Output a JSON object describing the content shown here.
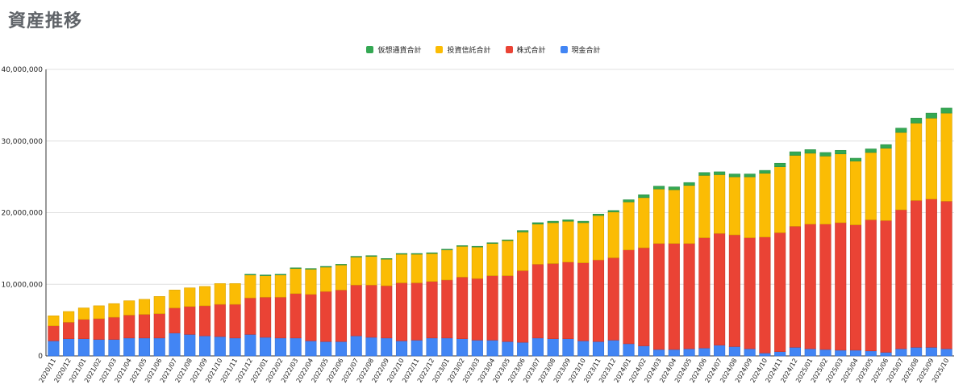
{
  "chart_data": {
    "type": "bar",
    "stacked": true,
    "title": "資産推移",
    "xlabel": "",
    "ylabel": "",
    "ylim": [
      0,
      40000000
    ],
    "yticks": [
      "0",
      "10,000,000",
      "20,000,000",
      "30,000,000",
      "40,000,000"
    ],
    "ytick_values": [
      0,
      10000000,
      20000000,
      30000000,
      40000000
    ],
    "legend_position": "top-center",
    "categories": [
      "2020/11",
      "2020/12",
      "2021/01",
      "2021/02",
      "2021/03",
      "2021/04",
      "2021/05",
      "2021/06",
      "2021/07",
      "2021/08",
      "2021/09",
      "2021/10",
      "2021/11",
      "2021/12",
      "2022/01",
      "2022/02",
      "2022/03",
      "2022/04",
      "2022/05",
      "2022/06",
      "2022/07",
      "2022/08",
      "2022/09",
      "2022/10",
      "2022/11",
      "2022/12",
      "2023/01",
      "2023/02",
      "2023/03",
      "2023/04",
      "2023/05",
      "2023/06",
      "2023/07",
      "2023/08",
      "2023/09",
      "2023/10",
      "2023/11",
      "2023/12",
      "2024/01",
      "2024/02",
      "2024/03",
      "2024/04",
      "2024/05",
      "2024/06",
      "2024/07",
      "2024/08",
      "2024/09",
      "2024/10",
      "2024/11",
      "2024/12",
      "2025/01",
      "2025/02",
      "2025/03",
      "2025/04",
      "2025/05",
      "2025/06",
      "2025/07",
      "2025/08",
      "2025/09",
      "2025/10"
    ],
    "series": [
      {
        "name": "現金合計",
        "color": "#4285f4",
        "values": [
          2100000,
          2400000,
          2400000,
          2300000,
          2300000,
          2500000,
          2500000,
          2500000,
          3200000,
          3000000,
          2800000,
          2700000,
          2500000,
          3000000,
          2600000,
          2500000,
          2500000,
          2100000,
          2000000,
          2000000,
          2800000,
          2600000,
          2500000,
          2100000,
          2200000,
          2500000,
          2500000,
          2400000,
          2200000,
          2200000,
          2000000,
          1900000,
          2500000,
          2400000,
          2400000,
          2100000,
          2000000,
          2200000,
          1700000,
          1400000,
          900000,
          900000,
          1000000,
          1100000,
          1500000,
          1300000,
          1000000,
          400000,
          600000,
          1200000,
          1000000,
          900000,
          800000,
          800000,
          700000,
          500000,
          1000000,
          1200000,
          1200000,
          1000000
        ]
      },
      {
        "name": "株式合計",
        "color": "#ea4335",
        "values": [
          2100000,
          2300000,
          2700000,
          2900000,
          3100000,
          3200000,
          3300000,
          3400000,
          3500000,
          3900000,
          4200000,
          4500000,
          4700000,
          5100000,
          5600000,
          5700000,
          6200000,
          6500000,
          7000000,
          7200000,
          7100000,
          7300000,
          7300000,
          8100000,
          8000000,
          7900000,
          8100000,
          8600000,
          8600000,
          9000000,
          9200000,
          10000000,
          10300000,
          10500000,
          10700000,
          10900000,
          11400000,
          11500000,
          13100000,
          13700000,
          14800000,
          14800000,
          14700000,
          15400000,
          15600000,
          15600000,
          15500000,
          16200000,
          16600000,
          16900000,
          17400000,
          17500000,
          17800000,
          17500000,
          18300000,
          18400000,
          19400000,
          20500000,
          20700000,
          20600000
        ]
      },
      {
        "name": "投資信託合計",
        "color": "#fbbc04",
        "values": [
          1400000,
          1500000,
          1600000,
          1800000,
          1900000,
          2000000,
          2100000,
          2400000,
          2500000,
          2600000,
          2700000,
          2900000,
          2900000,
          3200000,
          3000000,
          3100000,
          3500000,
          3500000,
          3400000,
          3500000,
          3900000,
          4000000,
          3700000,
          4000000,
          4000000,
          3900000,
          4200000,
          4300000,
          4400000,
          4500000,
          4900000,
          5400000,
          5600000,
          5700000,
          5700000,
          5600000,
          6200000,
          6400000,
          6700000,
          7000000,
          7600000,
          7500000,
          8100000,
          8700000,
          8200000,
          8100000,
          8500000,
          8900000,
          9200000,
          9900000,
          9900000,
          9500000,
          9600000,
          8900000,
          9400000,
          10100000,
          10800000,
          10800000,
          11300000,
          12300000
        ]
      },
      {
        "name": "仮想通貨合計",
        "color": "#34a853",
        "values": [
          0,
          0,
          0,
          0,
          0,
          0,
          0,
          0,
          0,
          0,
          0,
          0,
          0,
          100000,
          100000,
          100000,
          100000,
          100000,
          100000,
          100000,
          100000,
          100000,
          100000,
          100000,
          100000,
          100000,
          100000,
          100000,
          100000,
          100000,
          100000,
          200000,
          200000,
          200000,
          200000,
          200000,
          200000,
          200000,
          300000,
          400000,
          400000,
          400000,
          400000,
          400000,
          400000,
          400000,
          400000,
          400000,
          500000,
          500000,
          500000,
          500000,
          500000,
          400000,
          500000,
          500000,
          600000,
          700000,
          700000,
          700000
        ]
      }
    ],
    "legend_order": [
      "仮想通貨合計",
      "投資信託合計",
      "株式合計",
      "現金合計"
    ]
  }
}
